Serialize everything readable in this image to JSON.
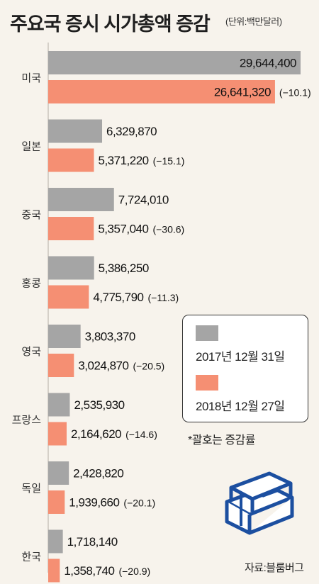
{
  "header": {
    "title": "주요국 증시 시가총액 증감",
    "unit": "(단위:백만달러)"
  },
  "legend": {
    "items": [
      {
        "label": "2017년 12월 31일"
      },
      {
        "label": "2018년 12월 27일"
      }
    ]
  },
  "note": "*괄호는 증감률",
  "source": "자료:블룸버그",
  "colors": {
    "series_2017": "#a5a5a5",
    "series_2018": "#f58f73",
    "background": "#f7f3ec",
    "axis": "#d5d0c8"
  },
  "icons": [
    "money-stack-icon"
  ],
  "chart_data": {
    "type": "bar",
    "orientation": "horizontal",
    "categories": [
      "미국",
      "일본",
      "중국",
      "홍콩",
      "영국",
      "프랑스",
      "독일",
      "한국"
    ],
    "series": [
      {
        "name": "2017년 12월 31일",
        "values": [
          29644400,
          6329870,
          7724010,
          5386250,
          3803370,
          2535930,
          2428820,
          1718140
        ],
        "labels": [
          "29,644,400",
          "6,329,870",
          "7,724,010",
          "5,386,250",
          "3,803,370",
          "2,535,930",
          "2,428,820",
          "1,718,140"
        ]
      },
      {
        "name": "2018년 12월 27일",
        "values": [
          26641320,
          5371220,
          5357040,
          4775790,
          3024870,
          2164620,
          1939660,
          1358740
        ],
        "labels": [
          "26,641,320",
          "5,371,220",
          "5,357,040",
          "4,775,790",
          "3,024,870",
          "2,164,620",
          "1,939,660",
          "1,358,740"
        ],
        "change_labels": [
          "(−10.1)",
          "(−15.1)",
          "(−30.6)",
          "(−11.3)",
          "(−20.5)",
          "(−14.6)",
          "(−20.1)",
          "(−20.9)"
        ]
      }
    ]
  }
}
